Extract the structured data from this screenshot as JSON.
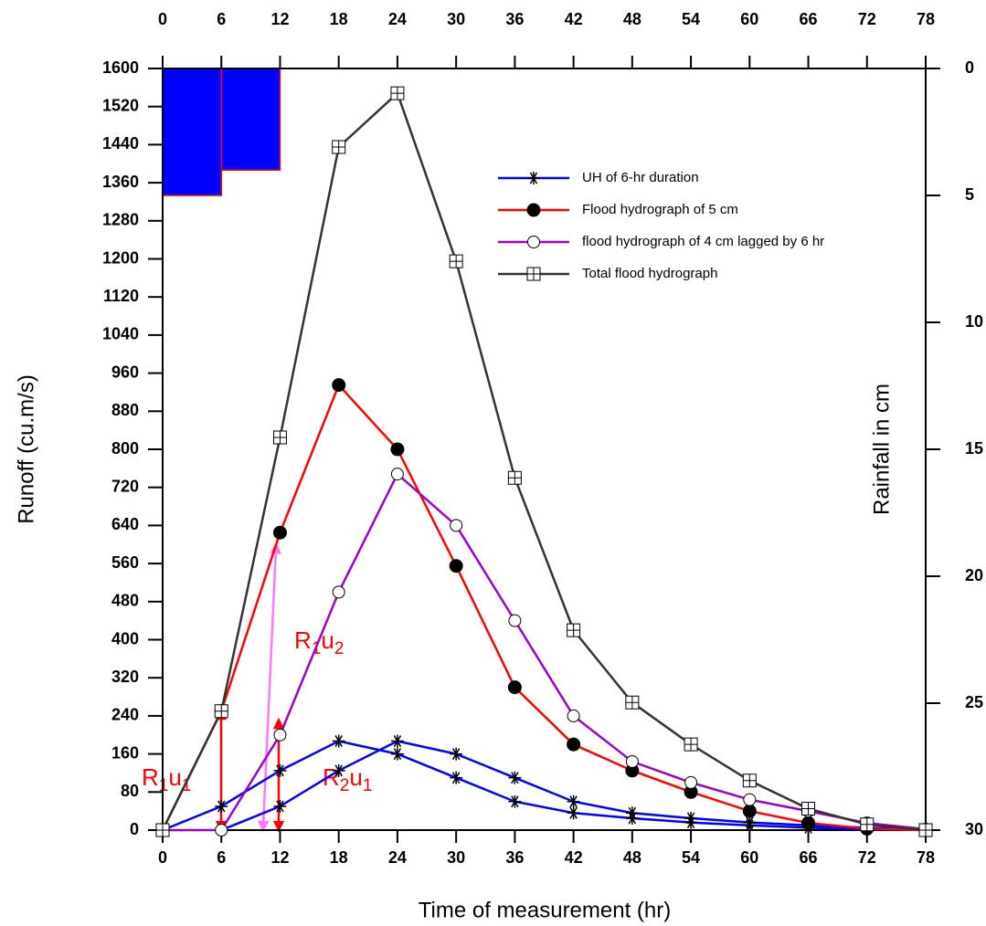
{
  "chart_data": {
    "type": "line",
    "xlabel": "Time of measurement (hr)",
    "ylabel": "Runoff (cu.m/s)",
    "y2label": "Rainfall in cm",
    "x": [
      0,
      6,
      12,
      18,
      24,
      30,
      36,
      42,
      48,
      54,
      60,
      66,
      72,
      78
    ],
    "xlim": [
      0,
      78
    ],
    "xticks": [
      0,
      6,
      12,
      18,
      24,
      30,
      36,
      42,
      48,
      54,
      60,
      66,
      72,
      78
    ],
    "ylim": [
      0,
      1600
    ],
    "yticks": [
      0,
      80,
      160,
      240,
      320,
      400,
      480,
      560,
      640,
      720,
      800,
      880,
      960,
      1040,
      1120,
      1200,
      1280,
      1360,
      1440,
      1520,
      1600
    ],
    "y2lim": [
      30,
      0
    ],
    "y2ticks": [
      0,
      5,
      10,
      15,
      20,
      25,
      30
    ],
    "legend": "upper right",
    "series": [
      {
        "name": "UH of 6-hr duration",
        "color": "#0000ff",
        "marker": "star",
        "values": [
          0,
          50,
          125,
          187,
          160,
          110,
          60,
          36,
          25,
          16,
          10,
          5,
          2,
          0
        ]
      },
      {
        "color": "#0000ff",
        "marker": "star",
        "values": [
          null,
          0,
          50,
          125,
          187,
          160,
          110,
          60,
          36,
          25,
          16,
          10,
          5,
          2
        ]
      },
      {
        "name": "Flood hydrograph of 5 cm",
        "color": "#ff0000",
        "marker": "filled-circle",
        "values": [
          0,
          250,
          625,
          935,
          800,
          555,
          300,
          180,
          125,
          80,
          40,
          15,
          3,
          0
        ]
      },
      {
        "name": "flood hydrograph of 4 cm lagged by 6 hr",
        "color": "#9900cc",
        "marker": "circle",
        "values": [
          0,
          0,
          200,
          500,
          748,
          640,
          440,
          240,
          144,
          100,
          64,
          40,
          15,
          2
        ]
      },
      {
        "name": "Total flood hydrograph",
        "color": "#333333",
        "marker": "boxplus",
        "values": [
          0,
          250,
          825,
          1435,
          1548,
          1195,
          740,
          420,
          268,
          180,
          104,
          45,
          12,
          0
        ]
      }
    ],
    "rainfall": {
      "bins": [
        0,
        6,
        12
      ],
      "values": [
        5,
        4
      ],
      "color": "#0000ff",
      "edge": "#ff0000",
      "axis": "y2"
    },
    "annotations": [
      "R1u1",
      "R1u2",
      "R2u1"
    ]
  }
}
